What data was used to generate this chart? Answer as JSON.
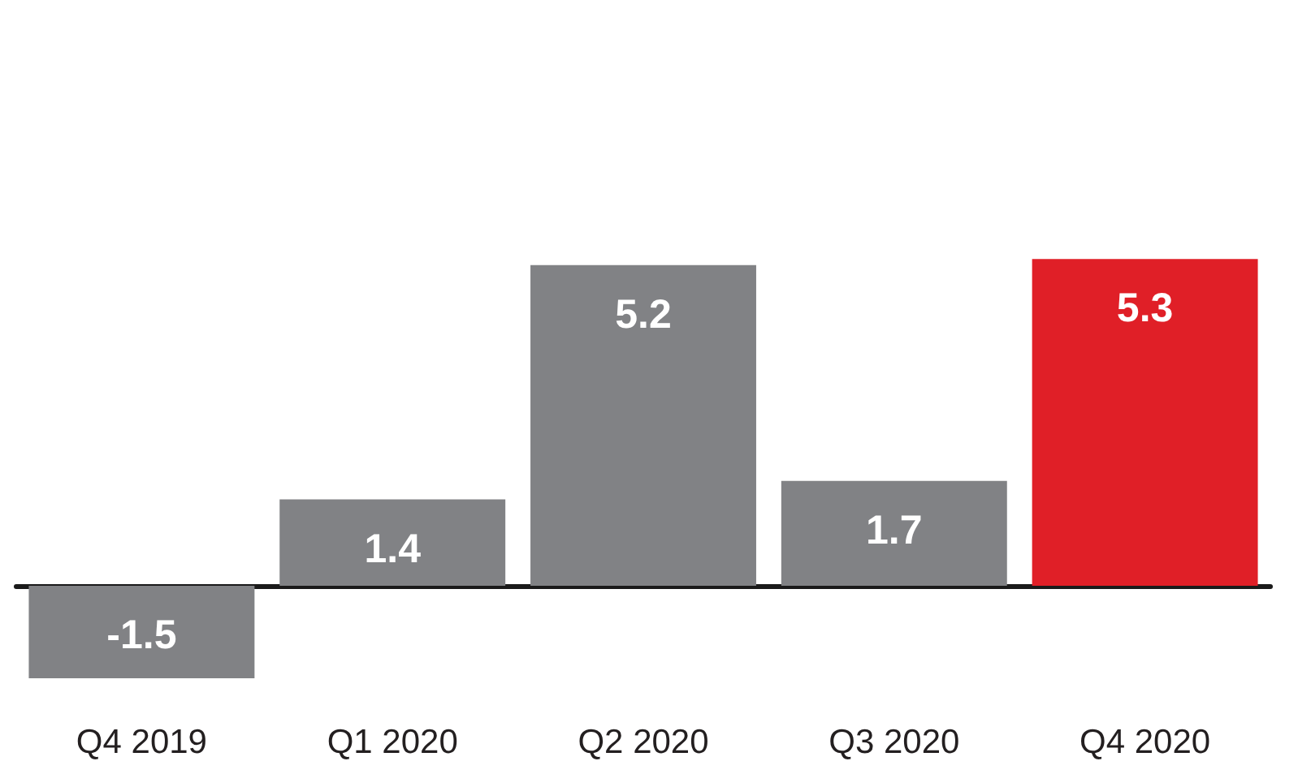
{
  "chart_data": {
    "type": "bar",
    "categories": [
      "Q4 2019",
      "Q1 2020",
      "Q2 2020",
      "Q3 2020",
      "Q4 2020"
    ],
    "values": [
      -1.5,
      1.4,
      5.2,
      1.7,
      5.3
    ],
    "colors": [
      "#818285",
      "#818285",
      "#818285",
      "#818285",
      "#e01f27"
    ],
    "data_labels": true
  }
}
